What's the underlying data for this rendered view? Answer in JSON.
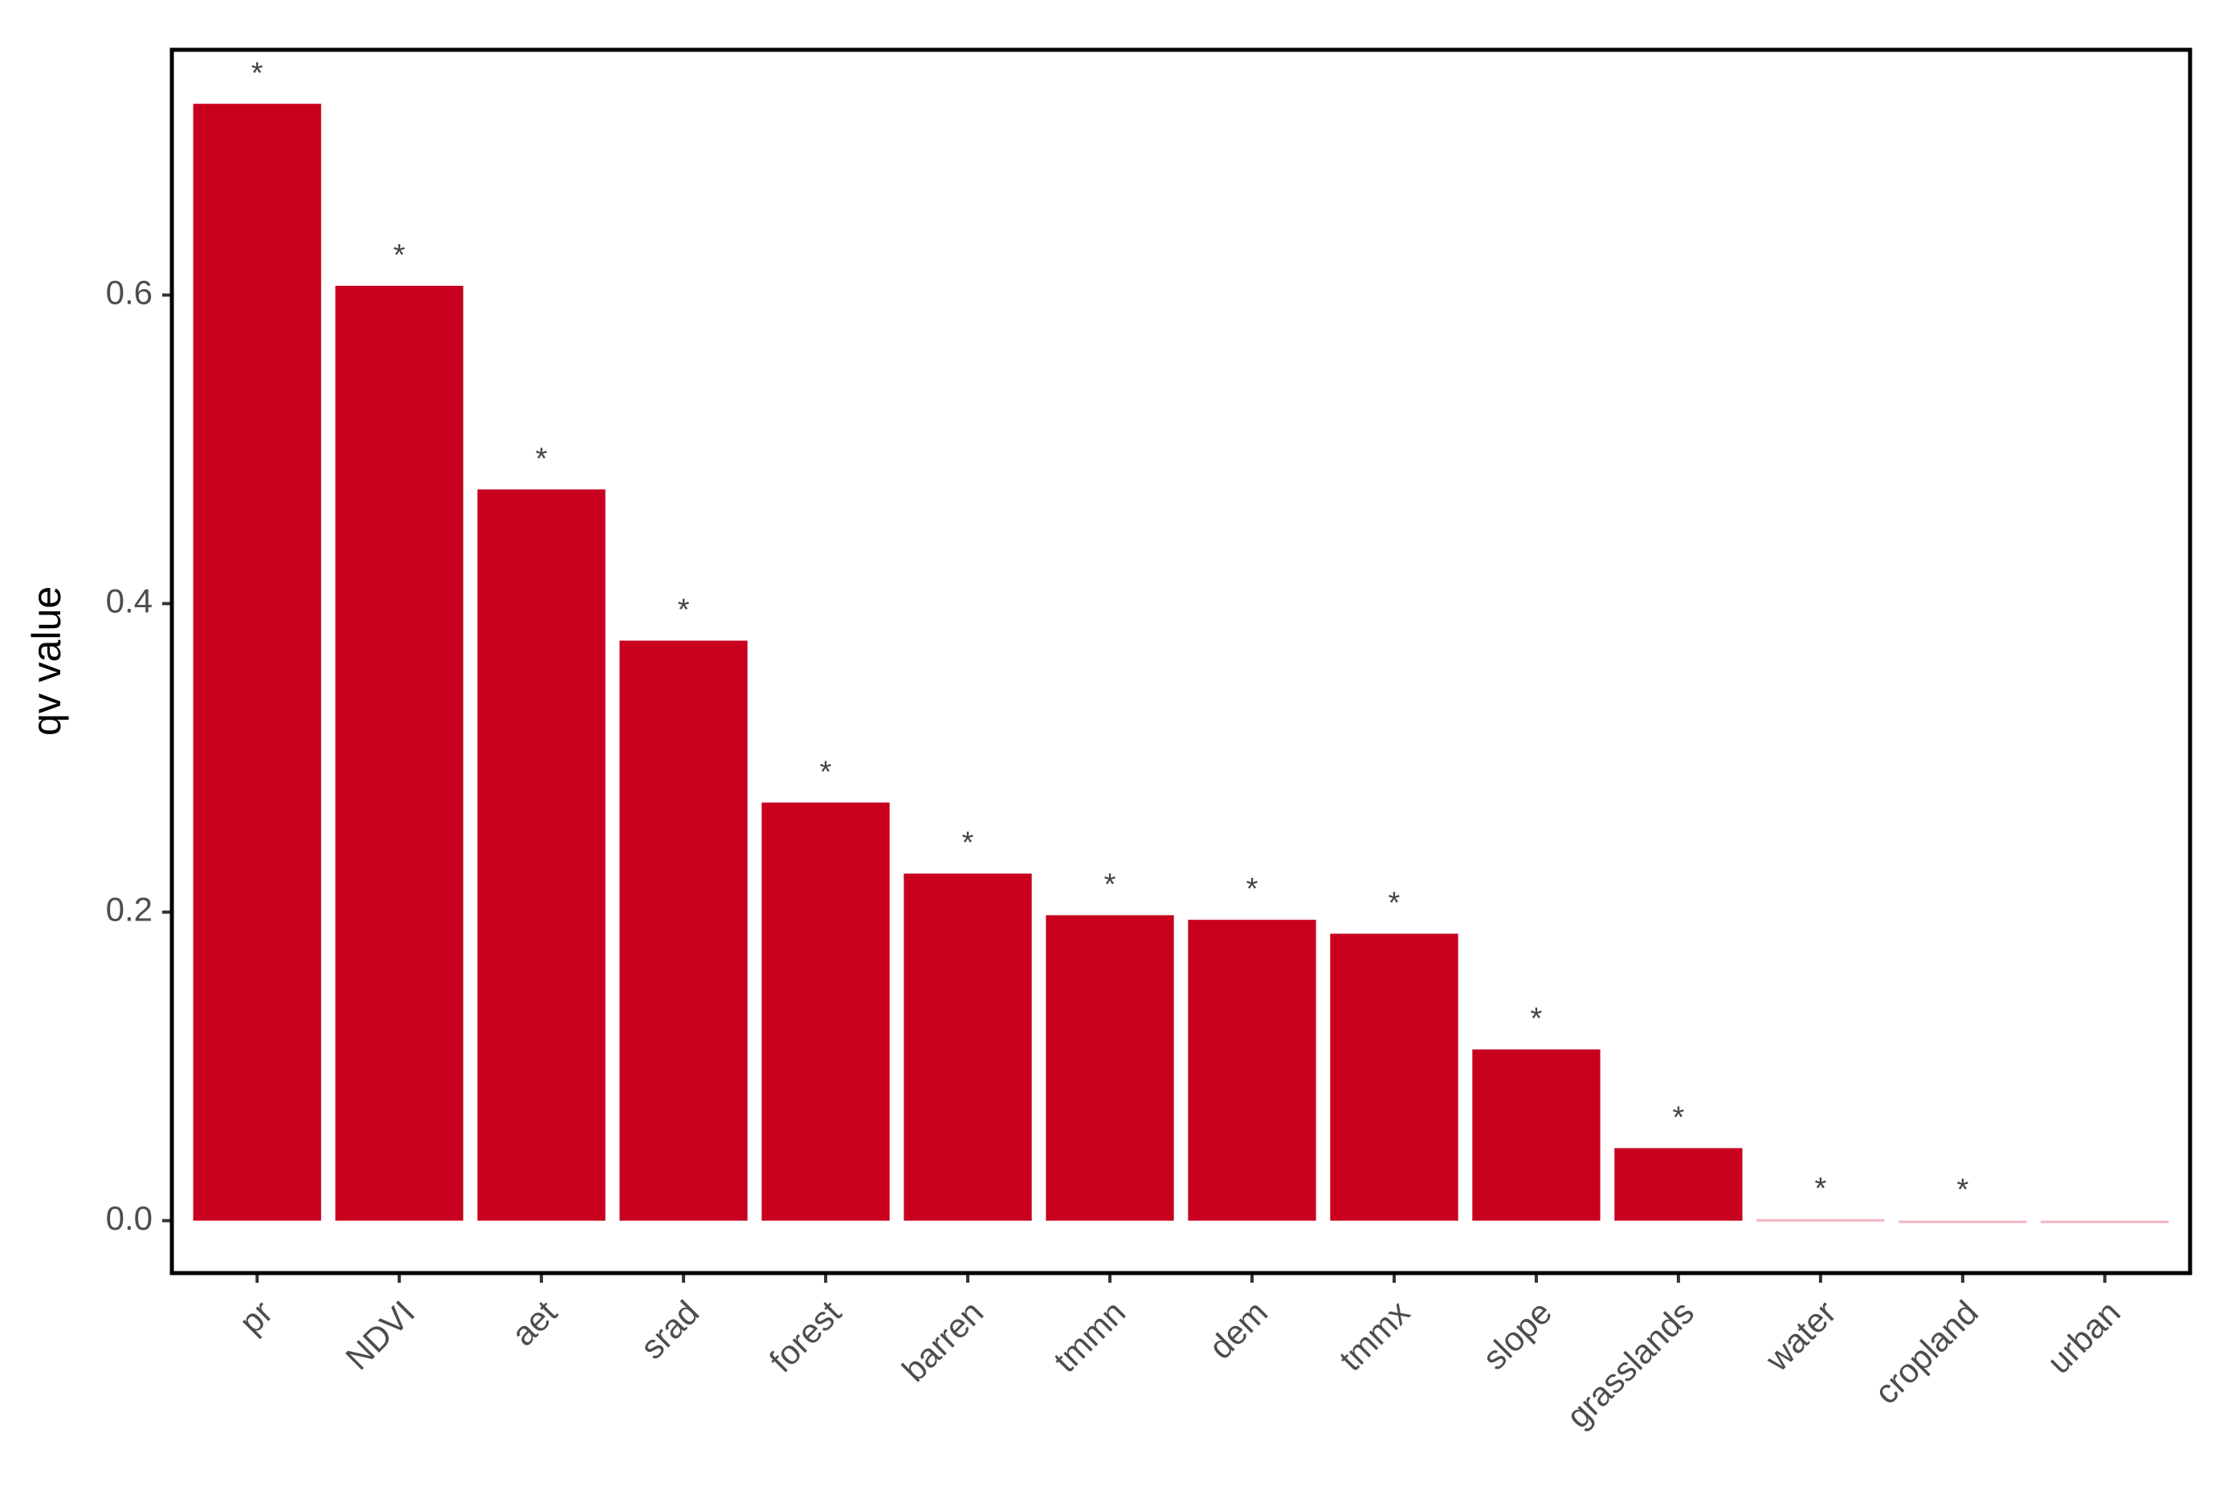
{
  "chart_data": {
    "type": "bar",
    "y_label": "qv value",
    "categories": [
      "pr",
      "NDVI",
      "aet",
      "srad",
      "forest",
      "barren",
      "tmmn",
      "dem",
      "tmmx",
      "slope",
      "grasslands",
      "water",
      "cropland",
      "urban"
    ],
    "values": [
      0.724,
      0.606,
      0.474,
      0.376,
      0.271,
      0.225,
      0.198,
      0.195,
      0.186,
      0.111,
      0.047,
      0.001,
      0,
      0
    ],
    "colors": [
      "#c8001e",
      "#c8001e",
      "#c8001e",
      "#c8001e",
      "#c8001e",
      "#c8001e",
      "#c8001e",
      "#c8001e",
      "#c8001e",
      "#c8001e",
      "#c8001e",
      "#f4b3c0",
      "#f4b3c0",
      "#f4b3c0"
    ],
    "annotations": [
      "*",
      "*",
      "*",
      "*",
      "*",
      "*",
      "*",
      "*",
      "*",
      "*",
      "*",
      "*",
      "*",
      null
    ],
    "ylim": [
      -0.034,
      0.759
    ],
    "yticks": [
      {
        "value": 0,
        "label": "0.0"
      },
      0.2,
      0.4,
      0.6
    ]
  }
}
